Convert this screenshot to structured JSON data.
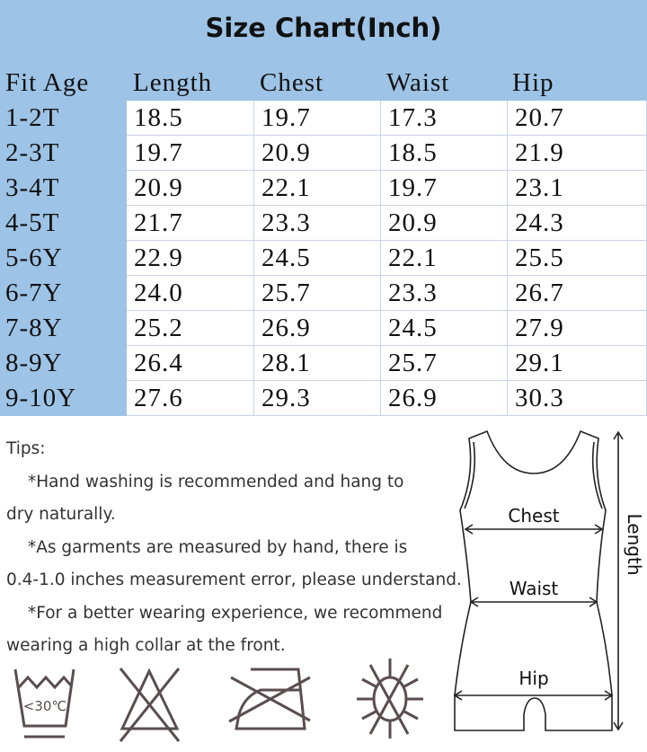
{
  "title": "Size Chart(Inch)",
  "headers": [
    "Fit Age",
    "Length",
    "Chest",
    "Waist",
    "Hip"
  ],
  "rows": [
    {
      "age": "1-2T",
      "values": [
        "18.5",
        "19.7",
        "17.3",
        "20.7"
      ]
    },
    {
      "age": "2-3T",
      "values": [
        "19.7",
        "20.9",
        "18.5",
        "21.9"
      ]
    },
    {
      "age": "3-4T",
      "values": [
        "20.9",
        "22.1",
        "19.7",
        "23.1"
      ]
    },
    {
      "age": "4-5T",
      "values": [
        "21.7",
        "23.3",
        "20.9",
        "24.3"
      ]
    },
    {
      "age": "5-6Y",
      "values": [
        "22.9",
        "24.5",
        "22.1",
        "25.5"
      ]
    },
    {
      "age": "6-7Y",
      "values": [
        "24.0",
        "25.7",
        "23.3",
        "26.7"
      ]
    },
    {
      "age": "7-8Y",
      "values": [
        "25.2",
        "26.9",
        "24.5",
        "27.9"
      ]
    },
    {
      "age": "8-9Y",
      "values": [
        "26.4",
        "28.1",
        "25.7",
        "29.1"
      ]
    },
    {
      "age": "9-10Y",
      "values": [
        "27.6",
        "29.3",
        "26.9",
        "30.3"
      ]
    }
  ],
  "tips": {
    "heading": "Tips:",
    "lines": [
      "*Hand washing is recommended and hang to",
      "dry naturally.",
      "*As garments are measured by hand, there is",
      "0.4-1.0 inches measurement error, please understand.",
      "*For a better wearing experience, we recommend",
      "wearing a high collar at the front."
    ]
  },
  "diagram": {
    "chest": "Chest",
    "waist": "Waist",
    "hip": "Hip",
    "length": "Length"
  },
  "care_icons": [
    {
      "icon": "hand-wash-icon",
      "text": "<30℃"
    },
    {
      "icon": "no-bleach-icon"
    },
    {
      "icon": "no-iron-icon"
    },
    {
      "icon": "no-sun-dry-icon"
    }
  ],
  "colors": {
    "header_bg": "#9dc3e6",
    "icon_stroke": "#5a4e4e"
  }
}
